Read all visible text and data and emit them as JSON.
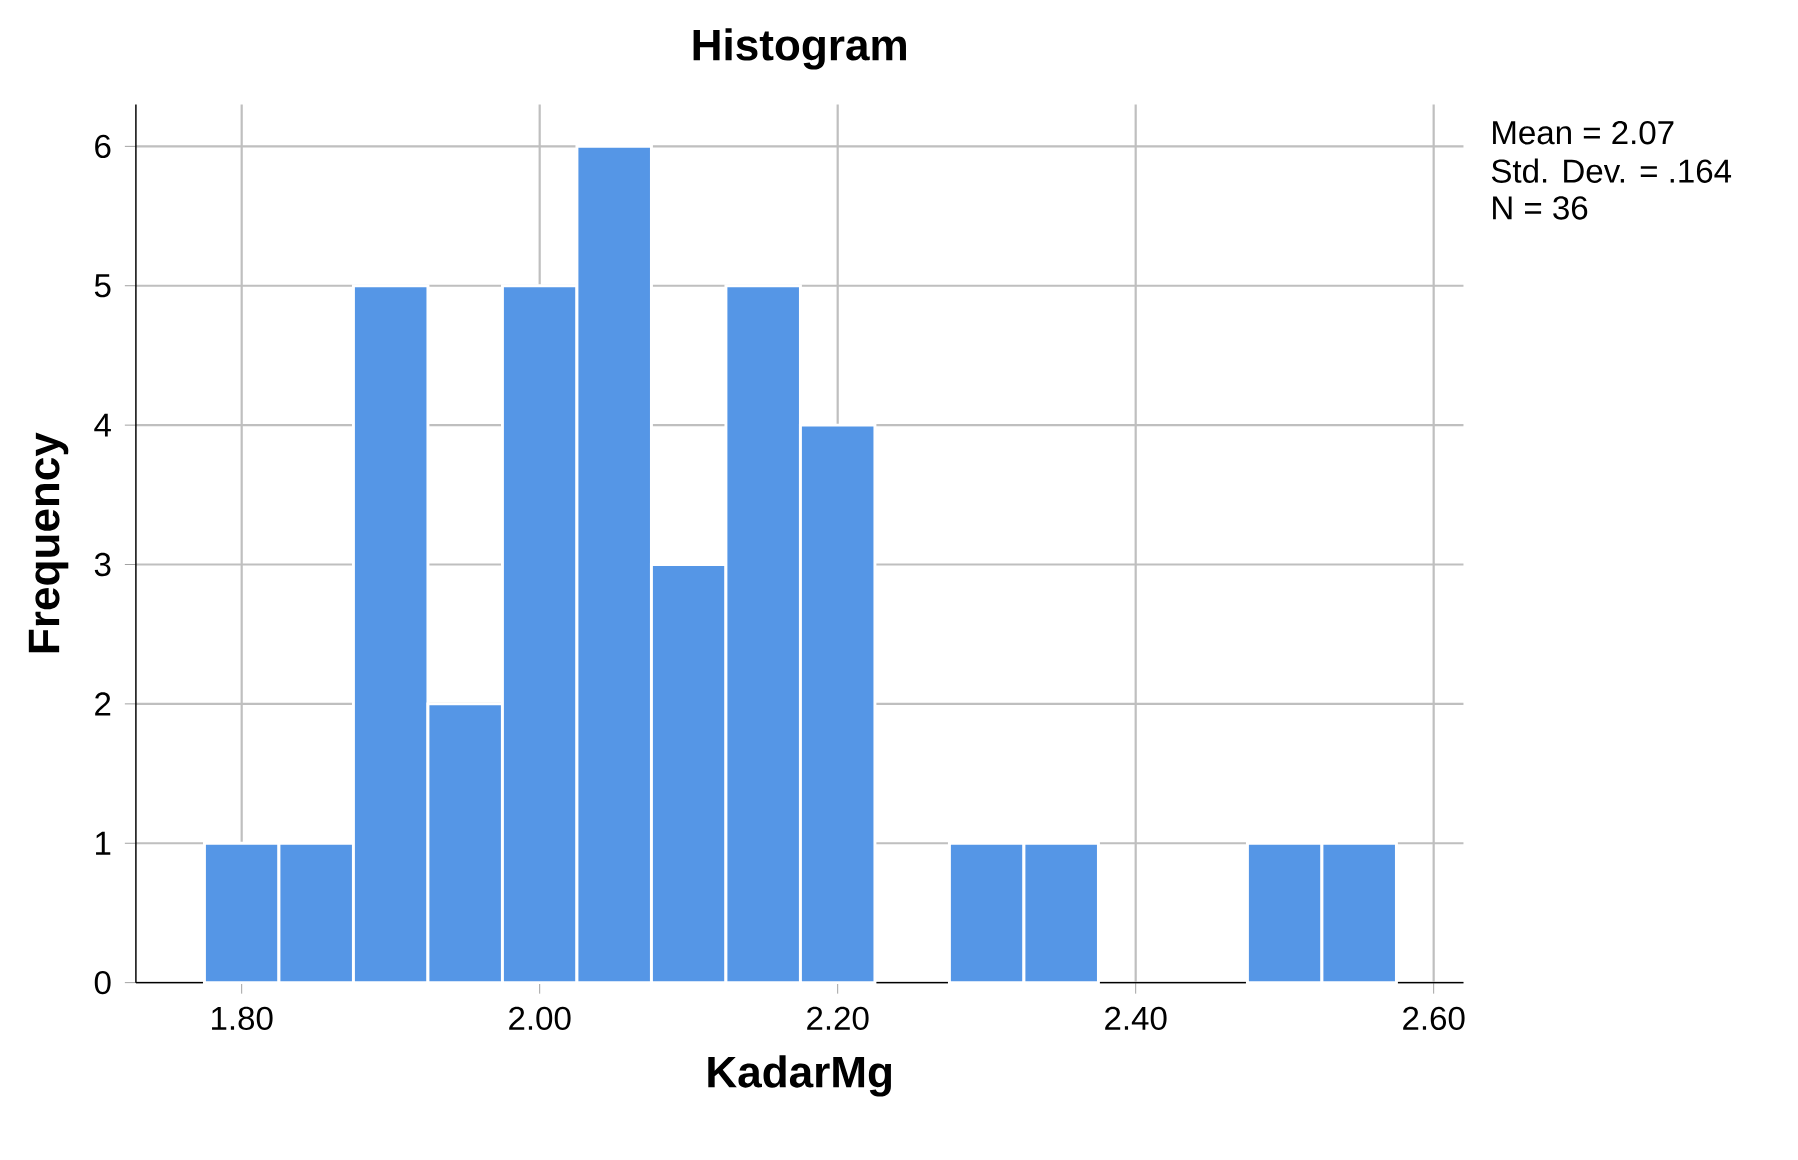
{
  "chart_data": {
    "type": "histogram",
    "title": "Histogram",
    "xlabel": "KadarMg",
    "ylabel": "Frequency",
    "bins": [
      1.775,
      1.825,
      1.875,
      1.925,
      1.975,
      2.025,
      2.075,
      2.125,
      2.175,
      2.225,
      2.275,
      2.325,
      2.375,
      2.425,
      2.475,
      2.525,
      2.575
    ],
    "values": [
      1,
      1,
      5,
      2,
      5,
      6,
      3,
      5,
      4,
      0,
      1,
      1,
      0,
      0,
      1,
      1
    ],
    "color": "#5596e6",
    "xlim": [
      1.729,
      2.62
    ],
    "xticks": [
      {
        "value": 1.8,
        "label": "1.80"
      },
      {
        "value": 2.0,
        "label": "2.00"
      },
      {
        "value": 2.2,
        "label": "2.20"
      },
      {
        "value": 2.4,
        "label": "2.40"
      },
      {
        "value": 2.6,
        "label": "2.60"
      }
    ],
    "ylim": [
      0,
      6.3
    ],
    "yticks": [
      0,
      1,
      2,
      3,
      4,
      5,
      6
    ],
    "grid": true,
    "annotations": [
      "Mean = 2.07",
      "Std. Dev. = .164",
      "N = 36"
    ]
  }
}
